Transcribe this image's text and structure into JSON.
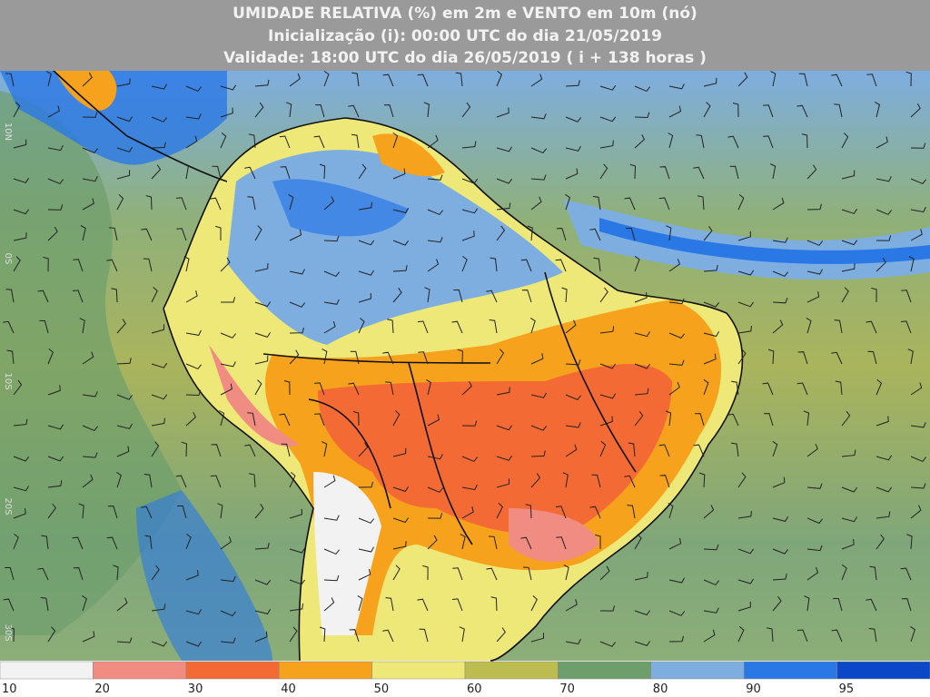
{
  "header": {
    "lines": [
      "UMIDADE RELATIVA (%) em 2m e VENTO em 10m (nó)",
      "Inicialização (i): 00:00 UTC do dia 21/05/2019",
      "Validade: 18:00 UTC do dia 26/05/2019 ( i + 138 horas )"
    ]
  },
  "latitude_labels": [
    "10N",
    "0S",
    "10S",
    "20S",
    "30S"
  ],
  "colorbar": {
    "levels": [
      10,
      20,
      30,
      40,
      50,
      60,
      70,
      80,
      90,
      95
    ],
    "colors": [
      "#f2f2f2",
      "#f08c82",
      "#f46a34",
      "#f6a21c",
      "#eee878",
      "#bcbc50",
      "#6e9e6c",
      "#7eaee0",
      "#2a78e6",
      "#0a48c8"
    ]
  }
}
